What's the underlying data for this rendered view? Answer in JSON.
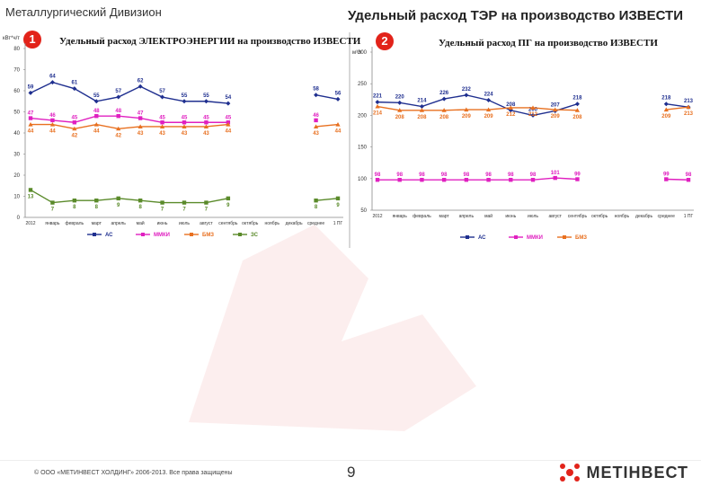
{
  "header": {
    "division": "Металлургический Дивизион",
    "title": "Удельный расход ТЭР на производство ИЗВЕСТИ"
  },
  "footer": {
    "copyright": "© ООО «МЕТИНВЕСТ ХОЛДИНГ» 2006-2013. Все права защищены",
    "page": "9",
    "brand": "МЕТІНВЕСТ"
  },
  "colors": {
    "AC": "#1f2f8f",
    "MMKI": "#e020c0",
    "BMZ": "#e87020",
    "ZS": "#5a8a2a",
    "accent": "#e2231a"
  },
  "chart_data": [
    {
      "type": "line",
      "badge": "1",
      "title": "Удельный расход ЭЛЕКТРОЭНЕРГИИ на производство ИЗВЕСТИ",
      "unit": "кВт*ч/т",
      "categories": [
        "2012",
        "январь",
        "февраль",
        "март",
        "апрель",
        "май",
        "июнь",
        "июль",
        "август",
        "сентябрь",
        "октябрь",
        "ноябрь",
        "декабрь",
        "среднее",
        "1 ПГ"
      ],
      "yticks": [
        "0",
        "10",
        "20",
        "30",
        "40",
        "50",
        "60",
        "70",
        "80"
      ],
      "ylim": [
        0,
        80
      ],
      "series": [
        {
          "name": "АС",
          "color": "#1f2f8f",
          "values": [
            59,
            64,
            61,
            55,
            57,
            62,
            57,
            55,
            55,
            54,
            null,
            null,
            null,
            58,
            56
          ]
        },
        {
          "name": "ММКИ",
          "color": "#e020c0",
          "values": [
            47,
            46,
            45,
            48,
            48,
            47,
            45,
            45,
            45,
            45,
            null,
            null,
            null,
            46,
            null
          ]
        },
        {
          "name": "БМЗ",
          "color": "#e87020",
          "values": [
            44,
            44,
            42,
            44,
            42,
            43,
            43,
            43,
            43,
            44,
            null,
            null,
            null,
            43,
            44
          ]
        },
        {
          "name": "ЗС",
          "color": "#5a8a2a",
          "values": [
            13,
            7,
            8,
            8,
            9,
            8,
            7,
            7,
            7,
            9,
            null,
            null,
            null,
            8,
            9
          ]
        }
      ]
    },
    {
      "type": "line",
      "badge": "2",
      "title": "Удельный расход ПГ на производство ИЗВЕСТИ",
      "unit": "м³/т",
      "categories": [
        "2012",
        "январь",
        "февраль",
        "март",
        "апрель",
        "май",
        "июнь",
        "июль",
        "август",
        "сентябрь",
        "октябрь",
        "ноябрь",
        "декабрь",
        "среднее",
        "1 ПГ"
      ],
      "yticks": [
        "50",
        "100",
        "150",
        "200",
        "250",
        "300"
      ],
      "ylim": [
        50,
        300
      ],
      "series": [
        {
          "name": "АС",
          "color": "#1f2f8f",
          "values": [
            221,
            220,
            214,
            226,
            232,
            224,
            208,
            200,
            207,
            218,
            null,
            null,
            null,
            218,
            213
          ]
        },
        {
          "name": "ММКИ",
          "color": "#e020c0",
          "values": [
            98,
            98,
            98,
            98,
            98,
            98,
            98,
            98,
            101,
            99,
            null,
            null,
            null,
            99,
            98
          ]
        },
        {
          "name": "БМЗ",
          "color": "#e87020",
          "values": [
            214,
            208,
            208,
            208,
            209,
            209,
            212,
            212,
            209,
            208,
            null,
            null,
            null,
            209,
            213
          ]
        }
      ]
    }
  ]
}
